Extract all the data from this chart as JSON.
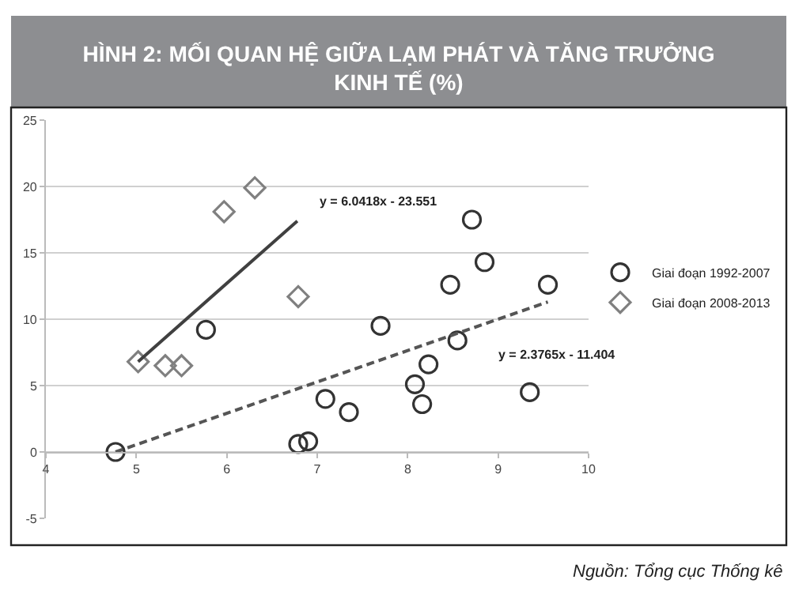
{
  "chart_data": {
    "type": "scatter",
    "title": "HÌNH 2: MỐI QUAN HỆ GIỮA LẠM PHÁT VÀ TĂNG TRƯỞNG\nKINH TẾ (%)",
    "xlim": [
      4,
      10
    ],
    "xticks": [
      4,
      5,
      6,
      7,
      8,
      9,
      10
    ],
    "ylim": [
      -5,
      25
    ],
    "yticks": [
      -5,
      0,
      5,
      10,
      15,
      20,
      25
    ],
    "grid": "y",
    "legend": "right",
    "series": [
      {
        "name": "Giai đoạn 1992-2007",
        "color": "#333333",
        "marker": "circle",
        "x": [
          4.77,
          5.77,
          6.79,
          6.9,
          7.09,
          7.35,
          7.7,
          8.08,
          8.16,
          8.23,
          8.47,
          8.55,
          8.71,
          8.85,
          9.35,
          9.55
        ],
        "values": [
          0,
          9.2,
          0.6,
          0.8,
          4.0,
          3.0,
          9.5,
          5.1,
          3.6,
          6.6,
          12.6,
          8.4,
          17.5,
          14.3,
          4.5,
          12.6
        ]
      },
      {
        "name": "Giai đoạn 2008-2013",
        "color": "#808080",
        "marker": "diamond",
        "x": [
          5.02,
          5.32,
          5.5,
          5.97,
          6.31,
          6.79
        ],
        "values": [
          6.8,
          6.5,
          6.5,
          18.1,
          19.9,
          11.7
        ]
      },
      {
        "type": "line",
        "color": "#404040",
        "line_style": "solid",
        "x": [
          5.02,
          6.78
        ],
        "values": [
          6.8,
          17.4
        ]
      },
      {
        "type": "line",
        "color": "#555555",
        "line_style": "dashed",
        "x": [
          4.77,
          9.55
        ],
        "values": [
          0,
          11.3
        ]
      }
    ],
    "annotations": [
      "y = 6.0418x - 23.551",
      "y = 2.3765x - 11.404",
      "Nguồn: Tổng cục Thống kê"
    ]
  }
}
